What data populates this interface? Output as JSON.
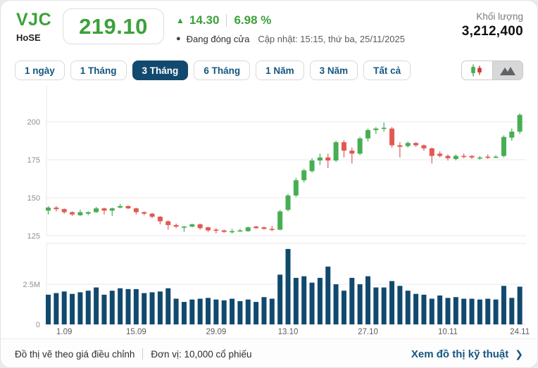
{
  "header": {
    "symbol": "VJC",
    "exchange": "HoSE",
    "price": "219.10",
    "up_arrow": "▲",
    "change": "14.30",
    "change_pct": "6.98 %",
    "status_dot": "●",
    "status": "Đang đóng cửa",
    "updated": "Cập nhật: 15:15, thứ ba, 25/11/2025",
    "volume_label": "Khối lượng",
    "volume_value": "3,212,400"
  },
  "tabs": [
    {
      "label": "1 ngày",
      "active": false
    },
    {
      "label": "1 Tháng",
      "active": false
    },
    {
      "label": "3 Tháng",
      "active": true
    },
    {
      "label": "6 Tháng",
      "active": false
    },
    {
      "label": "1 Năm",
      "active": false
    },
    {
      "label": "3 Năm",
      "active": false
    },
    {
      "label": "Tất cả",
      "active": false
    }
  ],
  "chart_toggle": {
    "modes": [
      "candlestick",
      "area"
    ],
    "active": "candlestick"
  },
  "colors": {
    "green": "#3ba13a",
    "candle_green": "#47ae52",
    "candle_red": "#e15954",
    "volume_bar": "#11496e",
    "grid": "#e8e8e8",
    "axis_text": "#8f8f8f",
    "tick_text": "#5d5d5d",
    "navy": "#114a6e",
    "link": "#14577f"
  },
  "chart_data": {
    "type": "candlestick+volume",
    "price_axis": {
      "ticks": [
        200,
        175,
        150,
        125
      ],
      "ylim": [
        120,
        212
      ]
    },
    "volume_axis": {
      "ticks": [
        {
          "label": "2.5M",
          "value": 2.5
        },
        {
          "label": "0",
          "value": 0
        }
      ]
    },
    "x_ticks": [
      {
        "label": "1.09",
        "index": 2
      },
      {
        "label": "15.09",
        "index": 11
      },
      {
        "label": "29.09",
        "index": 21
      },
      {
        "label": "13.10",
        "index": 30
      },
      {
        "label": "27.10",
        "index": 40
      },
      {
        "label": "10.11",
        "index": 50
      },
      {
        "label": "24.11",
        "index": 59
      }
    ],
    "candles_ohlc": [
      [
        141.5,
        144.5,
        139,
        143.5
      ],
      [
        143.5,
        144.5,
        141,
        142.5
      ],
      [
        142.5,
        143,
        139.5,
        140.5
      ],
      [
        140.5,
        141,
        138,
        139
      ],
      [
        138.5,
        142,
        138,
        140.5
      ],
      [
        139.5,
        141,
        138.5,
        140.5
      ],
      [
        140.5,
        144,
        140,
        143
      ],
      [
        143,
        143.5,
        139,
        141.5
      ],
      [
        141.5,
        143.5,
        138,
        143
      ],
      [
        143.5,
        146,
        143,
        144.5
      ],
      [
        144.5,
        145,
        142.5,
        143
      ],
      [
        143,
        143.5,
        139,
        140.5
      ],
      [
        140.5,
        141,
        138.5,
        139.5
      ],
      [
        139.5,
        140,
        136.5,
        137.5
      ],
      [
        137.5,
        138,
        132.5,
        134.5
      ],
      [
        134.5,
        135,
        129,
        132
      ],
      [
        132,
        133,
        130,
        131
      ],
      [
        130.5,
        131.5,
        127.5,
        131
      ],
      [
        131,
        133,
        130.5,
        132.5
      ],
      [
        132.5,
        133,
        129,
        130
      ],
      [
        130.5,
        131,
        127.5,
        128.5
      ],
      [
        129,
        130,
        126.5,
        128.5
      ],
      [
        128.5,
        129,
        127,
        127.5
      ],
      [
        127.5,
        129.5,
        126.5,
        128
      ],
      [
        128,
        129.5,
        127.5,
        128.5
      ],
      [
        128,
        131,
        127.5,
        130.5
      ],
      [
        131,
        131.5,
        129.5,
        130
      ],
      [
        130.5,
        131,
        129,
        129.5
      ],
      [
        129.5,
        131.5,
        128,
        129
      ],
      [
        129,
        142,
        128.5,
        141
      ],
      [
        142,
        152.5,
        141,
        151.5
      ],
      [
        151.5,
        163,
        150.5,
        161.5
      ],
      [
        161.5,
        169,
        160,
        168
      ],
      [
        167.5,
        176,
        166.5,
        174.5
      ],
      [
        174.5,
        179,
        171.5,
        176.5
      ],
      [
        176.5,
        179,
        169.5,
        174.5
      ],
      [
        174.5,
        187.5,
        173.5,
        186.5
      ],
      [
        186.5,
        188,
        176.5,
        181
      ],
      [
        181,
        183,
        172.5,
        179
      ],
      [
        179,
        190,
        178,
        189
      ],
      [
        189,
        195.5,
        187,
        194.5
      ],
      [
        194.5,
        196.5,
        192,
        195.5
      ],
      [
        195.5,
        199.5,
        193.5,
        196
      ],
      [
        195.5,
        196.5,
        183,
        184.5
      ],
      [
        184.5,
        186.5,
        176.5,
        183.5
      ],
      [
        184,
        187,
        183,
        186
      ],
      [
        186,
        186.5,
        183.5,
        184.5
      ],
      [
        184.5,
        185,
        181,
        182.5
      ],
      [
        182.5,
        183,
        172.5,
        177.5
      ],
      [
        179,
        180.5,
        176.5,
        177.5
      ],
      [
        177.5,
        178.5,
        174.5,
        176
      ],
      [
        175.5,
        178.5,
        174.5,
        177.5
      ],
      [
        177.5,
        179,
        176,
        177
      ],
      [
        177.5,
        178,
        175.5,
        176.5
      ],
      [
        176,
        177.5,
        175,
        176.5
      ],
      [
        177,
        178.5,
        175.5,
        176.5
      ],
      [
        176.5,
        178,
        176,
        177
      ],
      [
        177.5,
        191,
        176.5,
        190
      ],
      [
        189.5,
        195.5,
        187.5,
        193.5
      ],
      [
        193.5,
        205.5,
        192,
        204.5
      ]
    ],
    "volumes_m": [
      1.85,
      1.95,
      2.05,
      1.9,
      2.0,
      2.1,
      2.3,
      1.85,
      2.1,
      2.25,
      2.2,
      2.2,
      1.95,
      2.0,
      2.05,
      2.25,
      1.6,
      1.4,
      1.55,
      1.6,
      1.65,
      1.55,
      1.5,
      1.6,
      1.45,
      1.55,
      1.4,
      1.7,
      1.6,
      3.1,
      4.7,
      2.9,
      3.0,
      2.6,
      2.9,
      3.6,
      2.5,
      2.1,
      2.9,
      2.5,
      3.0,
      2.3,
      2.3,
      2.7,
      2.4,
      2.1,
      1.9,
      1.85,
      1.6,
      1.8,
      1.65,
      1.7,
      1.6,
      1.6,
      1.55,
      1.6,
      1.55,
      2.4,
      1.65,
      2.35
    ]
  },
  "footer": {
    "note1": "Đồ thị vẽ theo giá điều chỉnh",
    "note2": "Đơn vị: 10,000 cổ phiếu",
    "link": "Xem đồ thị kỹ thuật",
    "chevron": "❯"
  }
}
